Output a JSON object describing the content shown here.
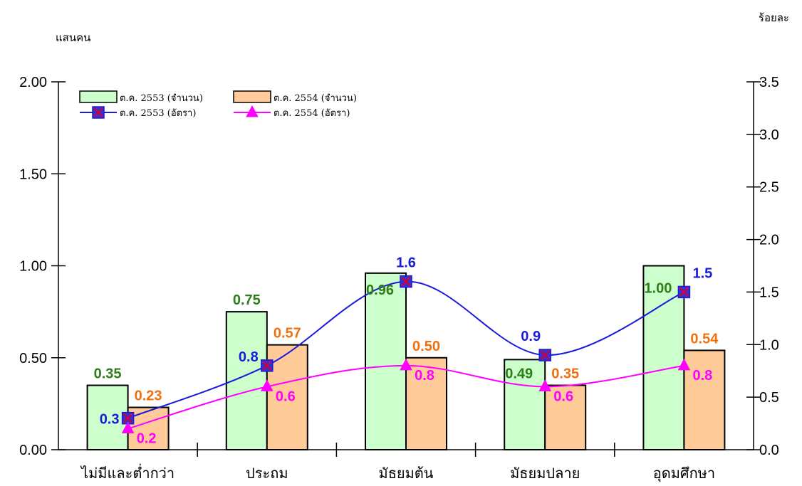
{
  "chart_data": {
    "type": "bar",
    "categories": [
      "ไม่มีและต่ำกว่า",
      "ประถม",
      "มัธยมต้น",
      "มัธยมปลาย",
      "อุดมศึกษา"
    ],
    "y_left_label": "แสนคน",
    "y_right_label": "ร้อยละ",
    "y_left_ticks": [
      "0.00",
      "0.50",
      "1.00",
      "1.50",
      "2.00"
    ],
    "y_right_ticks": [
      "0.0",
      "0.5",
      "1.0",
      "1.5",
      "2.0",
      "2.5",
      "3.0",
      "3.5"
    ],
    "ylim_left": [
      0,
      2
    ],
    "ylim_right": [
      0,
      3.5
    ],
    "legend_position": "top-left",
    "grid": false,
    "bar_series": [
      {
        "name": "ต.ค. 2553 (จำนวน)",
        "color": "#ccffcc",
        "label_color": "#2e7d1a",
        "values": [
          0.35,
          0.75,
          0.96,
          0.49,
          1.0
        ],
        "labels": [
          "0.35",
          "0.75",
          "0.96",
          "0.49",
          "1.00"
        ]
      },
      {
        "name": "ต.ค. 2554 (จำนวน)",
        "color": "#ffcc99",
        "label_color": "#f07010",
        "values": [
          0.23,
          0.57,
          0.5,
          0.35,
          0.54
        ],
        "labels": [
          "0.23",
          "0.57",
          "0.50",
          "0.35",
          "0.54"
        ]
      }
    ],
    "line_series": [
      {
        "name": "ต.ค. 2553 (อัตรา)",
        "color": "#1a1adc",
        "marker": "square-x",
        "values": [
          0.3,
          0.8,
          1.6,
          0.9,
          1.5
        ],
        "labels": [
          "0.3",
          "0.8",
          "1.6",
          "0.9",
          "1.5"
        ]
      },
      {
        "name": "ต.ค. 2554 (อัตรา)",
        "color": "#ff00ff",
        "marker": "triangle",
        "values": [
          0.2,
          0.6,
          0.8,
          0.6,
          0.8
        ],
        "labels": [
          "0.2",
          "0.6",
          "0.8",
          "0.6",
          "0.8"
        ]
      }
    ]
  }
}
